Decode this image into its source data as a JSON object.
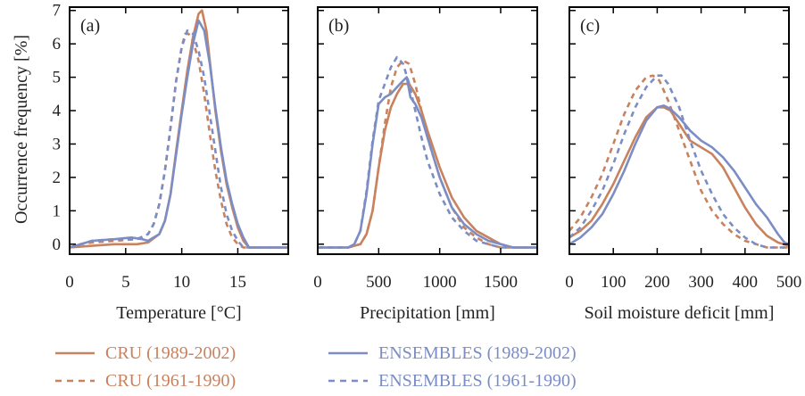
{
  "colors": {
    "cru": "#C8825E",
    "ensembles": "#7B8DC4",
    "axis": "#000000"
  },
  "y_axis": {
    "label": "Occurrence frequency [%]"
  },
  "legend": [
    {
      "label": "CRU (1989-2002)",
      "color": "#C8825E",
      "dash": "solid"
    },
    {
      "label": "CRU (1961-1990)",
      "color": "#C8825E",
      "dash": "dashed"
    },
    {
      "label": "ENSEMBLES (1989-2002)",
      "color": "#7B8DC4",
      "dash": "solid"
    },
    {
      "label": "ENSEMBLES (1961-1990)",
      "color": "#7B8DC4",
      "dash": "dashed"
    }
  ],
  "chart_data": [
    {
      "type": "line",
      "panel": "(a)",
      "xlabel": "Temperature [°C]",
      "ylabel": "Occurrence frequency [%]",
      "xlim": [
        0,
        19.5
      ],
      "ylim": [
        -0.3,
        7.1
      ],
      "xticks": [
        0,
        5,
        10,
        15
      ],
      "yticks": [
        0,
        1,
        2,
        3,
        4,
        5,
        6,
        7
      ],
      "series": [
        {
          "name": "CRU (1989-2002)",
          "color": "#C8825E",
          "dash": "solid",
          "x": [
            0,
            2,
            4,
            6,
            7,
            8,
            8.5,
            9,
            9.5,
            10,
            10.5,
            11,
            11.5,
            11.8,
            12.2,
            12.6,
            13,
            13.5,
            14,
            14.5,
            15,
            15.5,
            16,
            17,
            19.5
          ],
          "y": [
            -0.1,
            -0.05,
            0,
            0,
            0.05,
            0.3,
            0.7,
            1.5,
            2.8,
            4.0,
            5.2,
            6.2,
            6.9,
            7.0,
            6.4,
            5.2,
            4.0,
            2.8,
            1.8,
            1.1,
            0.5,
            0.1,
            -0.1,
            -0.1,
            -0.1
          ]
        },
        {
          "name": "CRU (1961-1990)",
          "color": "#C8825E",
          "dash": "dashed",
          "x": [
            0,
            1,
            2,
            4,
            6,
            7,
            7.5,
            8,
            8.5,
            9,
            9.5,
            10,
            10.3,
            10.6,
            11,
            11.5,
            12,
            12.5,
            13,
            13.5,
            14,
            14.5,
            15,
            15.5,
            19.5
          ],
          "y": [
            -0.1,
            0,
            0.05,
            0.1,
            0.15,
            0.3,
            0.6,
            1.2,
            2.2,
            3.5,
            4.9,
            5.9,
            6.3,
            6.3,
            6.1,
            5.5,
            4.5,
            3.3,
            2.2,
            1.3,
            0.6,
            0.2,
            0,
            -0.1,
            -0.1
          ]
        },
        {
          "name": "ENSEMBLES (1989-2002)",
          "color": "#7B8DC4",
          "dash": "solid",
          "x": [
            0,
            1,
            2,
            4,
            5.5,
            6.5,
            7,
            8,
            8.5,
            9,
            9.5,
            10,
            10.5,
            11,
            11.5,
            12,
            12.5,
            13,
            13.5,
            14,
            14.5,
            15,
            15.5,
            16,
            19.5
          ],
          "y": [
            -0.1,
            0,
            0.1,
            0.15,
            0.2,
            0.15,
            0.1,
            0.3,
            0.7,
            1.5,
            2.7,
            3.9,
            5.0,
            6.0,
            6.7,
            6.4,
            5.4,
            4.1,
            2.9,
            1.9,
            1.2,
            0.6,
            0.2,
            -0.1,
            -0.1
          ]
        },
        {
          "name": "ENSEMBLES (1961-1990)",
          "color": "#7B8DC4",
          "dash": "dashed",
          "x": [
            0,
            1,
            2,
            4,
            6,
            7,
            7.5,
            8,
            8.5,
            9,
            9.5,
            10,
            10.5,
            11,
            11.5,
            12,
            12.5,
            13,
            13.5,
            14,
            14.5,
            15,
            15.5,
            19.5
          ],
          "y": [
            -0.1,
            0,
            0.1,
            0.15,
            0.15,
            0.3,
            0.6,
            1.2,
            2.2,
            3.5,
            4.9,
            5.9,
            6.4,
            6.3,
            5.8,
            5.0,
            3.9,
            2.8,
            1.7,
            0.9,
            0.4,
            0.1,
            -0.1,
            -0.1
          ]
        }
      ]
    },
    {
      "type": "line",
      "panel": "(b)",
      "xlabel": "Precipitation [mm]",
      "xlim": [
        0,
        1800
      ],
      "ylim": [
        -0.3,
        7.1
      ],
      "xticks": [
        0,
        500,
        1000,
        1500
      ],
      "yticks": [
        0,
        1,
        2,
        3,
        4,
        5,
        6,
        7
      ],
      "series": [
        {
          "name": "CRU (1989-2002)",
          "color": "#C8825E",
          "dash": "solid",
          "x": [
            0,
            250,
            350,
            400,
            450,
            500,
            550,
            600,
            650,
            700,
            750,
            800,
            850,
            900,
            1000,
            1100,
            1200,
            1300,
            1400,
            1500,
            1600,
            1800
          ],
          "y": [
            -0.1,
            -0.1,
            0,
            0.3,
            1.0,
            2.3,
            3.4,
            4.1,
            4.5,
            4.8,
            4.8,
            4.5,
            4.0,
            3.4,
            2.3,
            1.4,
            0.8,
            0.4,
            0.2,
            0,
            -0.1,
            -0.1
          ]
        },
        {
          "name": "CRU (1961-1990)",
          "color": "#C8825E",
          "dash": "dashed",
          "x": [
            0,
            250,
            350,
            400,
            450,
            500,
            550,
            600,
            650,
            700,
            750,
            800,
            850,
            900,
            1000,
            1100,
            1200,
            1300,
            1400,
            1500,
            1600,
            1800
          ],
          "y": [
            -0.1,
            -0.1,
            0,
            0.3,
            1.0,
            2.3,
            3.6,
            4.7,
            5.3,
            5.5,
            5.4,
            4.8,
            4.0,
            3.2,
            2.0,
            1.1,
            0.5,
            0.2,
            0,
            -0.1,
            -0.1,
            -0.1
          ]
        },
        {
          "name": "ENSEMBLES (1989-2002)",
          "color": "#7B8DC4",
          "dash": "solid",
          "x": [
            0,
            250,
            300,
            350,
            400,
            450,
            500,
            550,
            600,
            650,
            700,
            730,
            760,
            800,
            850,
            900,
            1000,
            1100,
            1200,
            1300,
            1400,
            1500,
            1600,
            1800
          ],
          "y": [
            -0.1,
            -0.1,
            0,
            0.4,
            1.5,
            3.0,
            4.2,
            4.4,
            4.5,
            4.7,
            4.9,
            5.0,
            4.4,
            4.2,
            3.8,
            3.2,
            2.0,
            1.1,
            0.6,
            0.3,
            0.1,
            0,
            -0.1,
            -0.1
          ]
        },
        {
          "name": "ENSEMBLES (1961-1990)",
          "color": "#7B8DC4",
          "dash": "dashed",
          "x": [
            0,
            250,
            300,
            350,
            400,
            450,
            500,
            550,
            600,
            650,
            700,
            750,
            800,
            850,
            900,
            1000,
            1100,
            1200,
            1300,
            1400,
            1500,
            1800
          ],
          "y": [
            -0.1,
            -0.1,
            0,
            0.4,
            1.6,
            3.1,
            4.3,
            4.8,
            5.3,
            5.6,
            5.4,
            4.8,
            4.0,
            3.2,
            2.5,
            1.5,
            0.8,
            0.4,
            0.1,
            0,
            -0.1,
            -0.1
          ]
        }
      ]
    },
    {
      "type": "line",
      "panel": "(c)",
      "xlabel": "Soil moisture deficit [mm]",
      "xlim": [
        0,
        500
      ],
      "ylim": [
        -0.3,
        7.1
      ],
      "xticks": [
        0,
        100,
        200,
        300,
        400,
        500
      ],
      "yticks": [
        0,
        1,
        2,
        3,
        4,
        5,
        6,
        7
      ],
      "series": [
        {
          "name": "CRU (1989-2002)",
          "color": "#C8825E",
          "dash": "solid",
          "x": [
            0,
            25,
            50,
            75,
            100,
            125,
            150,
            175,
            200,
            215,
            230,
            250,
            275,
            300,
            325,
            350,
            375,
            400,
            425,
            450,
            475,
            500
          ],
          "y": [
            0.2,
            0.4,
            0.7,
            1.2,
            1.8,
            2.5,
            3.2,
            3.8,
            4.1,
            4.1,
            4.0,
            3.6,
            3.1,
            2.9,
            2.7,
            2.3,
            1.7,
            1.1,
            0.6,
            0.25,
            0.05,
            -0.05
          ]
        },
        {
          "name": "CRU (1961-1990)",
          "color": "#C8825E",
          "dash": "dashed",
          "x": [
            0,
            25,
            50,
            75,
            100,
            125,
            150,
            175,
            190,
            205,
            225,
            250,
            275,
            300,
            325,
            350,
            375,
            400,
            425,
            450,
            500
          ],
          "y": [
            0.4,
            0.8,
            1.4,
            2.1,
            3.0,
            3.9,
            4.6,
            5.0,
            5.05,
            4.9,
            4.3,
            3.4,
            2.5,
            1.6,
            1.0,
            0.6,
            0.3,
            0.1,
            0,
            -0.1,
            -0.1
          ]
        },
        {
          "name": "ENSEMBLES (1989-2002)",
          "color": "#7B8DC4",
          "dash": "solid",
          "x": [
            0,
            25,
            50,
            75,
            100,
            125,
            150,
            175,
            200,
            215,
            230,
            250,
            275,
            300,
            325,
            350,
            375,
            400,
            425,
            450,
            475,
            490,
            500
          ],
          "y": [
            0,
            0.2,
            0.5,
            0.9,
            1.5,
            2.2,
            3.0,
            3.7,
            4.1,
            4.15,
            4.05,
            3.8,
            3.4,
            3.1,
            2.9,
            2.6,
            2.2,
            1.7,
            1.2,
            0.8,
            0.3,
            0.05,
            0
          ]
        },
        {
          "name": "ENSEMBLES (1961-1990)",
          "color": "#7B8DC4",
          "dash": "dashed",
          "x": [
            0,
            25,
            50,
            75,
            100,
            125,
            150,
            175,
            200,
            210,
            225,
            250,
            275,
            300,
            325,
            350,
            375,
            400,
            425,
            450,
            500
          ],
          "y": [
            0.2,
            0.5,
            1.0,
            1.6,
            2.4,
            3.3,
            4.1,
            4.7,
            5.05,
            5.05,
            4.8,
            4.1,
            3.1,
            2.2,
            1.5,
            0.9,
            0.5,
            0.2,
            0,
            -0.1,
            -0.1
          ]
        }
      ]
    }
  ]
}
